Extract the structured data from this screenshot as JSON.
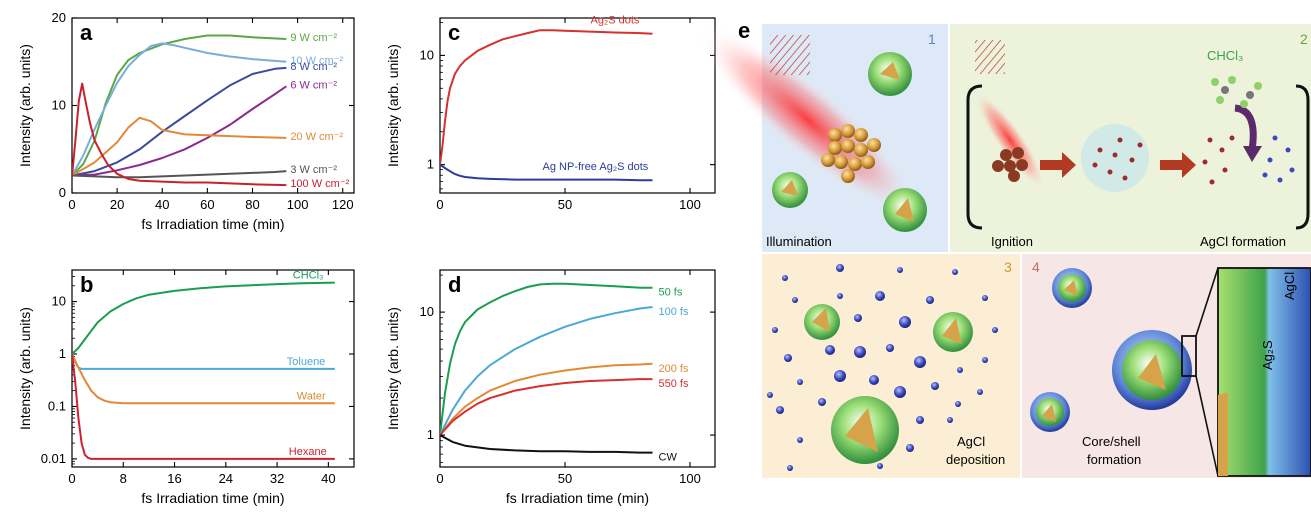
{
  "chart_data": [
    {
      "id": "a",
      "type": "line",
      "panel_label": "a",
      "xlabel": "fs Irradiation time (min)",
      "ylabel": "Intensity (arb. units)",
      "xlim": [
        0,
        125
      ],
      "ylim": [
        0,
        20
      ],
      "xticks": [
        "0",
        "20",
        "40",
        "60",
        "80",
        "100",
        "120"
      ],
      "yticks": [
        "0",
        "10",
        "20"
      ],
      "series": [
        {
          "name": "9 W cm⁻²",
          "color": "#5aa845",
          "x": [
            0,
            5,
            10,
            15,
            20,
            25,
            30,
            40,
            50,
            60,
            70,
            80,
            95
          ],
          "y": [
            2,
            3.3,
            6,
            10.3,
            13.5,
            15.2,
            16,
            17,
            17.6,
            18,
            18,
            17.8,
            17.6
          ]
        },
        {
          "name": "10 W cm⁻²",
          "color": "#7aaddb",
          "x": [
            0,
            5,
            10,
            15,
            20,
            25,
            30,
            35,
            40,
            45,
            50,
            60,
            70,
            80,
            95
          ],
          "y": [
            2,
            4.3,
            7.3,
            10,
            12.6,
            14.5,
            15.8,
            16.8,
            17.1,
            16.9,
            16.6,
            16,
            15.6,
            15.3,
            15
          ]
        },
        {
          "name": "8 W cm⁻²",
          "color": "#3b4a9c",
          "x": [
            0,
            10,
            20,
            30,
            40,
            50,
            60,
            70,
            80,
            90,
            95
          ],
          "y": [
            2,
            2.5,
            3.5,
            5,
            7,
            8.8,
            10.6,
            12.3,
            13.6,
            14.2,
            14.3
          ]
        },
        {
          "name": "6 W cm⁻²",
          "color": "#8b2a8e",
          "x": [
            0,
            10,
            20,
            30,
            40,
            50,
            60,
            70,
            80,
            90,
            95
          ],
          "y": [
            2,
            2.1,
            2.6,
            3.2,
            4,
            5,
            6.3,
            7.8,
            9.6,
            11.3,
            12.2
          ]
        },
        {
          "name": "20 W cm⁻²",
          "color": "#e08a36",
          "x": [
            0,
            10,
            20,
            25,
            30,
            35,
            40,
            50,
            60,
            70,
            80,
            95
          ],
          "y": [
            2,
            3.5,
            5.8,
            7.5,
            8.6,
            8.2,
            7.2,
            6.7,
            6.6,
            6.5,
            6.4,
            6.3
          ]
        },
        {
          "name": "3 W cm⁻²",
          "color": "#555555",
          "x": [
            0,
            10,
            20,
            30,
            40,
            50,
            60,
            70,
            80,
            90,
            95
          ],
          "y": [
            2,
            1.9,
            1.8,
            1.8,
            1.9,
            2,
            2.1,
            2.2,
            2.3,
            2.4,
            2.5
          ]
        },
        {
          "name": "100 W cm⁻²",
          "color": "#c8202e",
          "x": [
            0,
            1.5,
            3,
            4.5,
            6,
            8,
            10,
            13,
            16,
            20,
            25,
            30,
            40,
            50,
            60,
            70,
            80,
            95
          ],
          "y": [
            2,
            6,
            10.5,
            12.5,
            10.5,
            8,
            6,
            4.5,
            3.2,
            2.2,
            1.6,
            1.4,
            1.3,
            1.2,
            1.2,
            1.1,
            1,
            0.9
          ]
        }
      ]
    },
    {
      "id": "b",
      "type": "line",
      "panel_label": "b",
      "xlabel": "fs Irradiation time (min)",
      "ylabel": "Intensity (arb. units)",
      "scale_y": "log",
      "xlim": [
        0,
        44
      ],
      "ylim": [
        0.007,
        40
      ],
      "xticks": [
        "0",
        "8",
        "16",
        "24",
        "32",
        "40"
      ],
      "yticks": [
        "0.01",
        "0.1",
        "1",
        "10"
      ],
      "series": [
        {
          "name": "CHCl₃",
          "color": "#1a9e50",
          "x": [
            0,
            1,
            2,
            4,
            6,
            8,
            10,
            12,
            16,
            20,
            24,
            28,
            32,
            36,
            41
          ],
          "y": [
            1,
            1.3,
            1.9,
            4,
            6.5,
            9,
            11.5,
            13.5,
            16,
            18,
            19.5,
            20.5,
            21.5,
            22.3,
            23
          ]
        },
        {
          "name": "Toluene",
          "color": "#4aa9d8",
          "x": [
            0,
            0.5,
            1,
            1.5,
            2,
            4,
            8,
            16,
            24,
            32,
            41
          ],
          "y": [
            1,
            0.7,
            0.55,
            0.52,
            0.52,
            0.52,
            0.52,
            0.52,
            0.52,
            0.52,
            0.52
          ]
        },
        {
          "name": "Water",
          "color": "#e08a36",
          "x": [
            0,
            1,
            2,
            3,
            4,
            5,
            6,
            8,
            12,
            20,
            30,
            41
          ],
          "y": [
            1,
            0.55,
            0.32,
            0.2,
            0.15,
            0.13,
            0.12,
            0.115,
            0.115,
            0.115,
            0.115,
            0.115
          ]
        },
        {
          "name": "Hexane",
          "color": "#d0202e",
          "x": [
            0,
            0.5,
            1,
            1.5,
            2,
            2.5,
            3,
            4,
            8,
            16,
            24,
            32,
            41
          ],
          "y": [
            1,
            0.3,
            0.06,
            0.02,
            0.012,
            0.0105,
            0.01,
            0.01,
            0.01,
            0.01,
            0.01,
            0.01,
            0.01
          ]
        }
      ]
    },
    {
      "id": "c",
      "type": "line",
      "panel_label": "c",
      "xlabel": "",
      "ylabel": "Intensity (arb. units)",
      "scale_y": "log",
      "xlim": [
        0,
        110
      ],
      "ylim": [
        0.55,
        22
      ],
      "xticks": [
        "0",
        "50",
        "100"
      ],
      "yticks": [
        "1",
        "10"
      ],
      "series": [
        {
          "name": "Ag₂S dots",
          "color": "#d63030",
          "x": [
            0,
            1,
            2,
            3,
            4,
            6,
            8,
            10,
            15,
            20,
            25,
            30,
            35,
            40,
            45,
            50,
            60,
            70,
            80,
            85
          ],
          "y": [
            1,
            1.5,
            2.5,
            3.8,
            5,
            6.8,
            8,
            9,
            11,
            12.5,
            14,
            15,
            16,
            17,
            17,
            16.8,
            16.5,
            16.2,
            16,
            15.8
          ]
        },
        {
          "name": "Ag NP-free Ag₂S dots",
          "color": "#2a3f96",
          "x": [
            0,
            2,
            4,
            6,
            8,
            10,
            15,
            20,
            30,
            40,
            50,
            60,
            70,
            80,
            85
          ],
          "y": [
            1,
            0.93,
            0.87,
            0.82,
            0.79,
            0.77,
            0.75,
            0.74,
            0.73,
            0.73,
            0.73,
            0.73,
            0.73,
            0.72,
            0.72
          ]
        }
      ]
    },
    {
      "id": "d",
      "type": "line",
      "panel_label": "d",
      "xlabel": "fs Irradiation time (min)",
      "ylabel": "Intensity (arb. units)",
      "scale_y": "log",
      "xlim": [
        0,
        110
      ],
      "ylim": [
        0.55,
        22
      ],
      "xticks": [
        "0",
        "50",
        "100"
      ],
      "yticks": [
        "1",
        "10"
      ],
      "series": [
        {
          "name": "50 fs",
          "color": "#1a9e50",
          "x": [
            0,
            2,
            4,
            6,
            8,
            10,
            15,
            20,
            25,
            30,
            35,
            40,
            45,
            50,
            60,
            70,
            80,
            85
          ],
          "y": [
            1,
            2.2,
            3.8,
            5.5,
            7,
            8.3,
            10.5,
            12,
            13.5,
            14.8,
            16,
            16.8,
            17,
            17,
            16.6,
            16.2,
            15.8,
            15.8
          ]
        },
        {
          "name": "100 fs",
          "color": "#4aa9d8",
          "x": [
            0,
            5,
            10,
            15,
            20,
            30,
            40,
            50,
            60,
            70,
            80,
            85
          ],
          "y": [
            1,
            1.6,
            2.3,
            3,
            3.7,
            5,
            6.3,
            7.6,
            8.8,
            9.8,
            10.7,
            11
          ]
        },
        {
          "name": "200 fs",
          "color": "#e08a36",
          "x": [
            0,
            5,
            10,
            15,
            20,
            30,
            40,
            50,
            60,
            70,
            80,
            85
          ],
          "y": [
            1,
            1.35,
            1.7,
            2,
            2.3,
            2.75,
            3.1,
            3.35,
            3.55,
            3.7,
            3.75,
            3.8
          ]
        },
        {
          "name": "550 fs",
          "color": "#d63030",
          "x": [
            0,
            5,
            10,
            15,
            20,
            30,
            40,
            50,
            60,
            70,
            80,
            85
          ],
          "y": [
            1,
            1.3,
            1.55,
            1.8,
            2,
            2.3,
            2.5,
            2.65,
            2.75,
            2.8,
            2.85,
            2.85
          ]
        },
        {
          "name": "CW",
          "color": "#111111",
          "x": [
            0,
            5,
            10,
            20,
            30,
            40,
            50,
            60,
            70,
            80,
            85
          ],
          "y": [
            1,
            0.88,
            0.82,
            0.77,
            0.75,
            0.74,
            0.74,
            0.73,
            0.73,
            0.72,
            0.72
          ]
        }
      ]
    }
  ],
  "illustration": {
    "panel_label": "e",
    "steps": [
      {
        "number": "1",
        "number_color": "#5b86c6",
        "caption": "Illumination"
      },
      {
        "number": "2",
        "number_color": "#6da33a",
        "caption_left": "Ignition",
        "caption_right": "AgCl formation",
        "reagent": "CHCl₃"
      },
      {
        "number": "3",
        "number_color": "#c89a3c",
        "caption_line1": "AgCl",
        "caption_line2": "deposition"
      },
      {
        "number": "4",
        "number_color": "#c96a6a",
        "caption_line1": "Core/shell",
        "caption_line2": "formation",
        "zoom_inner": "Ag₂S",
        "zoom_outer": "AgCl"
      }
    ]
  }
}
